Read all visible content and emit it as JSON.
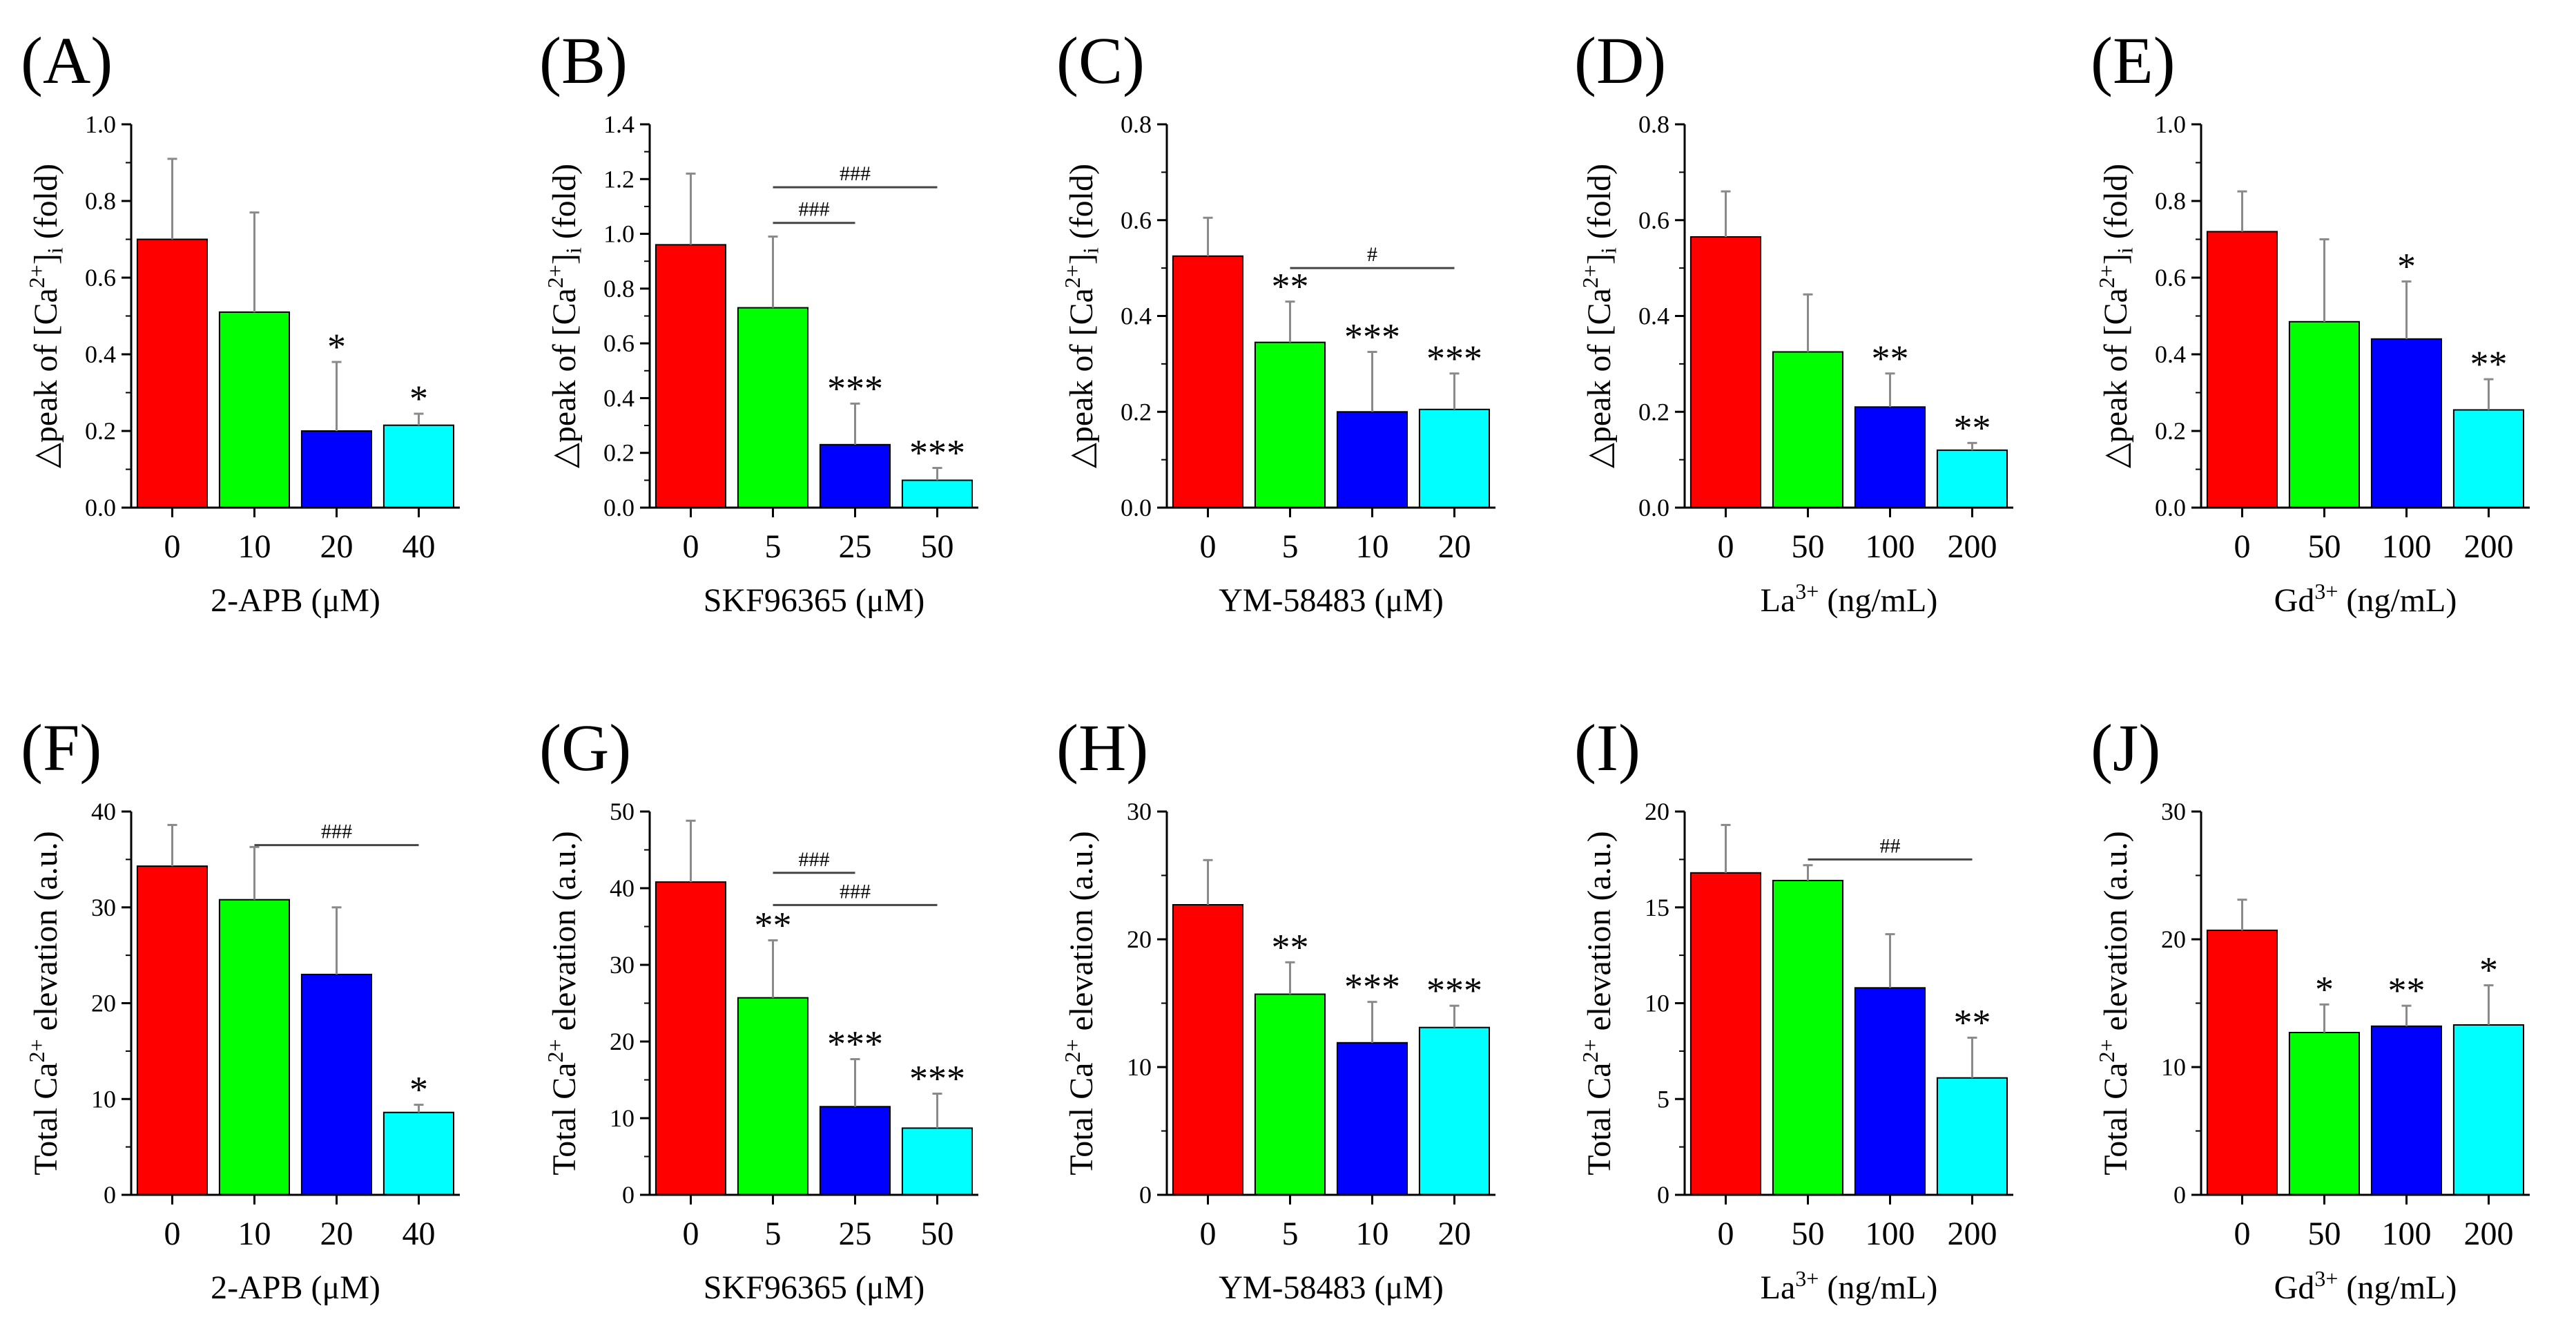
{
  "chart_data": [
    {
      "id": "A",
      "type": "bar",
      "panel_label": "(A)",
      "ylabel_parts": [
        "△peak of [Ca",
        "2+",
        "]",
        "i",
        " (fold)"
      ],
      "xlabel_parts": [
        "2-APB (μM)"
      ],
      "ylim": [
        0,
        1.0
      ],
      "yticks": [
        "0.0",
        "0.2",
        "0.4",
        "0.6",
        "0.8",
        "1.0"
      ],
      "categories": [
        "0",
        "10",
        "20",
        "40"
      ],
      "values": [
        0.7,
        0.51,
        0.2,
        0.215
      ],
      "errors": [
        0.21,
        0.26,
        0.18,
        0.03
      ],
      "annotations": [
        "",
        "",
        "*",
        "*"
      ],
      "brackets": []
    },
    {
      "id": "B",
      "type": "bar",
      "panel_label": "(B)",
      "ylabel_parts": [
        "△peak of [Ca",
        "2+",
        "]",
        "i",
        " (fold)"
      ],
      "xlabel_parts": [
        "SKF96365 (μM)"
      ],
      "ylim": [
        0,
        1.4
      ],
      "yticks": [
        "0.0",
        "0.2",
        "0.4",
        "0.6",
        "0.8",
        "1.0",
        "1.2",
        "1.4"
      ],
      "categories": [
        "0",
        "5",
        "25",
        "50"
      ],
      "values": [
        0.96,
        0.73,
        0.23,
        0.1
      ],
      "errors": [
        0.26,
        0.26,
        0.15,
        0.045
      ],
      "annotations": [
        "",
        "",
        "***",
        "***"
      ],
      "brackets": [
        {
          "from": 1,
          "to": 3,
          "value": 1.17,
          "text": "###"
        },
        {
          "from": 1,
          "to": 2,
          "value": 1.04,
          "text": "###"
        }
      ]
    },
    {
      "id": "C",
      "type": "bar",
      "panel_label": "(C)",
      "ylabel_parts": [
        "△peak of [Ca",
        "2+",
        "]",
        "i",
        " (fold)"
      ],
      "xlabel_parts": [
        "YM-58483 (μM)"
      ],
      "ylim": [
        0,
        0.8
      ],
      "yticks": [
        "0.0",
        "0.2",
        "0.4",
        "0.6",
        "0.8"
      ],
      "categories": [
        "0",
        "5",
        "10",
        "20"
      ],
      "values": [
        0.525,
        0.345,
        0.2,
        0.205
      ],
      "errors": [
        0.08,
        0.085,
        0.125,
        0.075
      ],
      "annotations": [
        "",
        "**",
        "***",
        "***"
      ],
      "brackets": [
        {
          "from": 1,
          "to": 3,
          "value": 0.5,
          "text": "#"
        }
      ]
    },
    {
      "id": "D",
      "type": "bar",
      "panel_label": "(D)",
      "ylabel_parts": [
        "△peak of [Ca",
        "2+",
        "]",
        "i",
        " (fold)"
      ],
      "xlabel_parts": [
        "La",
        "3+",
        " (ng/mL)"
      ],
      "ylim": [
        0,
        0.8
      ],
      "yticks": [
        "0.0",
        "0.2",
        "0.4",
        "0.6",
        "0.8"
      ],
      "categories": [
        "0",
        "50",
        "100",
        "200"
      ],
      "values": [
        0.565,
        0.325,
        0.21,
        0.12
      ],
      "errors": [
        0.095,
        0.12,
        0.07,
        0.015
      ],
      "annotations": [
        "",
        "",
        "**",
        "**"
      ],
      "brackets": []
    },
    {
      "id": "E",
      "type": "bar",
      "panel_label": "(E)",
      "ylabel_parts": [
        "△peak of [Ca",
        "2+",
        "]",
        "i",
        " (fold)"
      ],
      "xlabel_parts": [
        "Gd",
        "3+",
        " (ng/mL)"
      ],
      "ylim": [
        0,
        1.0
      ],
      "yticks": [
        "0.0",
        "0.2",
        "0.4",
        "0.6",
        "0.8",
        "1.0"
      ],
      "categories": [
        "0",
        "50",
        "100",
        "200"
      ],
      "values": [
        0.72,
        0.485,
        0.44,
        0.255
      ],
      "errors": [
        0.105,
        0.215,
        0.15,
        0.08
      ],
      "annotations": [
        "",
        "",
        "*",
        "**"
      ],
      "brackets": []
    },
    {
      "id": "F",
      "type": "bar",
      "panel_label": "(F)",
      "ylabel_parts": [
        "Total Ca",
        "2+",
        " elevation (a.u.)"
      ],
      "xlabel_parts": [
        "2-APB (μM)"
      ],
      "ylim": [
        0,
        40
      ],
      "yticks": [
        "0",
        "10",
        "20",
        "30",
        "40"
      ],
      "categories": [
        "0",
        "10",
        "20",
        "40"
      ],
      "values": [
        34.3,
        30.8,
        23.0,
        8.6
      ],
      "errors": [
        4.3,
        5.5,
        7.0,
        0.8
      ],
      "annotations": [
        "",
        "",
        "",
        "*"
      ],
      "brackets": [
        {
          "from": 1,
          "to": 3,
          "value": 36.5,
          "text": "###"
        }
      ]
    },
    {
      "id": "G",
      "type": "bar",
      "panel_label": "(G)",
      "ylabel_parts": [
        "Total Ca",
        "2+",
        " elevation (a.u.)"
      ],
      "xlabel_parts": [
        "SKF96365 (μM)"
      ],
      "ylim": [
        0,
        50
      ],
      "yticks": [
        "0",
        "10",
        "20",
        "30",
        "40",
        "50"
      ],
      "categories": [
        "0",
        "5",
        "25",
        "50"
      ],
      "values": [
        40.8,
        25.7,
        11.5,
        8.7
      ],
      "errors": [
        8.0,
        7.5,
        6.2,
        4.5
      ],
      "annotations": [
        "",
        "**",
        "***",
        "***"
      ],
      "brackets": [
        {
          "from": 1,
          "to": 2,
          "value": 42.0,
          "text": "###"
        },
        {
          "from": 1,
          "to": 3,
          "value": 37.8,
          "text": "###"
        }
      ]
    },
    {
      "id": "H",
      "type": "bar",
      "panel_label": "(H)",
      "ylabel_parts": [
        "Total Ca",
        "2+",
        " elevation (a.u.)"
      ],
      "xlabel_parts": [
        "YM-58483 (μM)"
      ],
      "ylim": [
        0,
        30
      ],
      "yticks": [
        "0",
        "10",
        "20",
        "30"
      ],
      "categories": [
        "0",
        "5",
        "10",
        "20"
      ],
      "values": [
        22.7,
        15.7,
        11.9,
        13.1
      ],
      "errors": [
        3.5,
        2.5,
        3.2,
        1.7
      ],
      "annotations": [
        "",
        "**",
        "***",
        "***"
      ],
      "brackets": []
    },
    {
      "id": "I",
      "type": "bar",
      "panel_label": "(I)",
      "ylabel_parts": [
        "Total Ca",
        "2+",
        " elevation (a.u.)"
      ],
      "xlabel_parts": [
        "La",
        "3+",
        " (ng/mL)"
      ],
      "ylim": [
        0,
        20
      ],
      "yticks": [
        "0",
        "5",
        "10",
        "15",
        "20"
      ],
      "categories": [
        "0",
        "50",
        "100",
        "200"
      ],
      "values": [
        16.8,
        16.4,
        10.8,
        6.1
      ],
      "errors": [
        2.5,
        0.8,
        2.8,
        2.1
      ],
      "annotations": [
        "",
        "",
        "",
        "**"
      ],
      "brackets": [
        {
          "from": 1,
          "to": 3,
          "value": 17.5,
          "text": "##"
        }
      ]
    },
    {
      "id": "J",
      "type": "bar",
      "panel_label": "(J)",
      "ylabel_parts": [
        "Total Ca",
        "2+",
        " elevation (a.u.)"
      ],
      "xlabel_parts": [
        "Gd",
        "3+",
        " (ng/mL)"
      ],
      "ylim": [
        0,
        30
      ],
      "yticks": [
        "0",
        "10",
        "20",
        "30"
      ],
      "categories": [
        "0",
        "50",
        "100",
        "200"
      ],
      "values": [
        20.7,
        12.7,
        13.2,
        13.3
      ],
      "errors": [
        2.4,
        2.2,
        1.6,
        3.1
      ],
      "annotations": [
        "",
        "*",
        "**",
        "*"
      ],
      "brackets": []
    }
  ],
  "bar_colors": [
    "#ff0000",
    "#00ff00",
    "#0000ff",
    "#00ffff"
  ],
  "error_color": "#8a8a8a"
}
